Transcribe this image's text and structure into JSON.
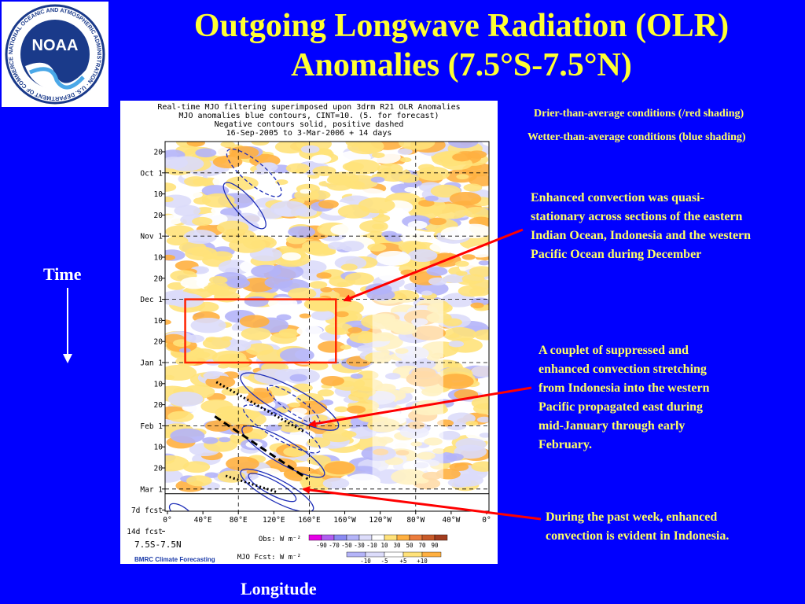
{
  "slide": {
    "title_line1": "Outgoing Longwave Radiation (OLR)",
    "title_line2": "Anomalies (7.5°S-7.5°N)",
    "time_label": "Time",
    "longitude_label": "Longitude",
    "drier_note": "Drier-than-average conditions (/red shading)",
    "wetter_note": "Wetter-than-average conditions (blue shading)",
    "annotation_december": "Enhanced convection was quasi-stationary across sections of the eastern Indian Ocean, Indonesia and the western Pacific Ocean during December",
    "annotation_couplet": "A couplet of suppressed and enhanced convection stretching from Indonesia into the western Pacific propagated east during mid-January through early February.",
    "annotation_pastweek": "During the past week, enhanced convection is evident in Indonesia.",
    "logo_text": "NOAA",
    "logo_ring_text": "NATIONAL OCEANIC AND ATMOSPHERIC ADMINISTRATION · U.S. DEPARTMENT OF COMMERCE",
    "colors": {
      "background": "#0000ff",
      "title": "#ffff33",
      "note": "#ffff66",
      "arrow": "#ff0000",
      "box": "#ff2200"
    }
  },
  "chart_data": {
    "type": "heatmap",
    "header_lines": [
      "Real-time MJO filtering superimposed upon 3drm R21 OLR Anomalies",
      "MJO anomalies blue contours, CINT=10. (5. for forecast)",
      "Negative contours solid, positive dashed",
      "16-Sep-2005 to  3-Mar-2006 + 14 days"
    ],
    "x_ticks": [
      "0°",
      "40°E",
      "80°E",
      "120°E",
      "160°E",
      "160°W",
      "120°W",
      "80°W",
      "40°W",
      "0°"
    ],
    "x_dashed_gridlines": [
      "80°E",
      "160°E",
      "80°W"
    ],
    "y_ticks": [
      "20",
      "Oct 1",
      "10",
      "20",
      "Nov 1",
      "10",
      "20",
      "Dec 1",
      "10",
      "20",
      "Jan 1",
      "10",
      "20",
      "Feb 1",
      "10",
      "20",
      "Mar 1",
      "7d fcst",
      "14d fcst"
    ],
    "y_dashed_gridlines": [
      "Oct 1",
      "Nov 1",
      "Dec 1",
      "Jan 1",
      "Feb 1",
      "Mar 1"
    ],
    "region_label": "7.5S-7.5N",
    "credit": "BMRC Climate Forecasting",
    "obs_label": "Obs: W m⁻²",
    "obs_levels": [
      "-90",
      "-70",
      "-50",
      "-30",
      "-10",
      "10",
      "30",
      "50",
      "70",
      "90"
    ],
    "obs_colors": [
      "#e600e6",
      "#b05ef0",
      "#8a8af2",
      "#b4b4f8",
      "#dcdcfa",
      "#ffffff",
      "#ffe27a",
      "#ffb040",
      "#ec7c3c",
      "#c85a28",
      "#a23c1e"
    ],
    "fcst_label": "MJO Fcst: W m⁻²",
    "fcst_levels": [
      "-10",
      "-5",
      "+5",
      "+10"
    ],
    "fcst_colors": [
      "#b4b4f8",
      "#dcdcfa",
      "#ffffff",
      "#ffe27a",
      "#ffb040"
    ],
    "highlight_box": {
      "lon_start": "20°E",
      "lon_end": "170°W",
      "time_start": "Dec 1",
      "time_end": "Jan 1"
    }
  }
}
